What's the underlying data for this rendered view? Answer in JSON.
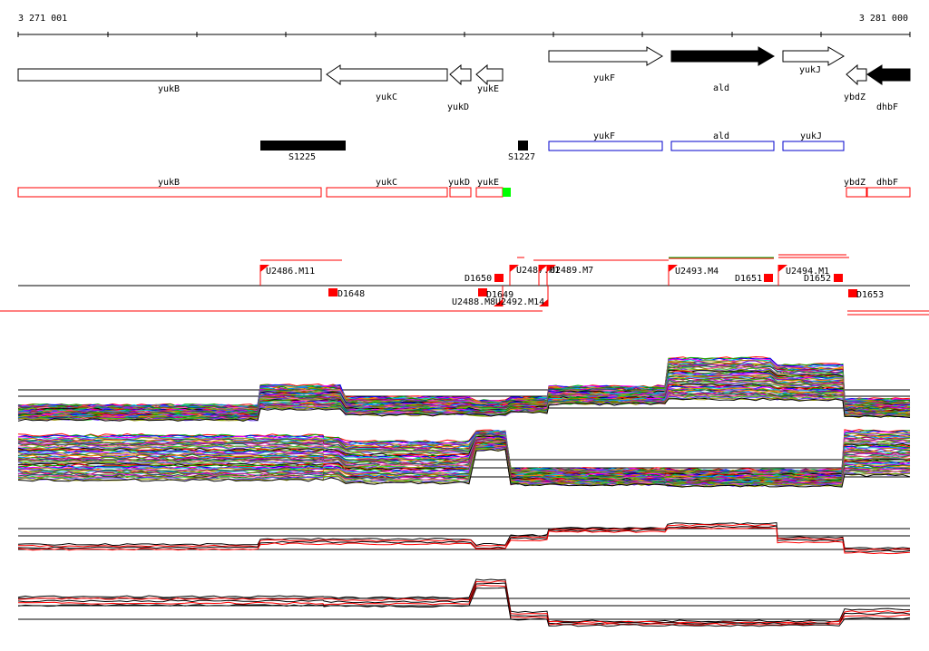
{
  "coordinates": {
    "start_label": "3 271 001",
    "end_label": "3 281 000"
  },
  "genes": [
    {
      "name": "yukB",
      "strand": "-",
      "fill": "#ffffff"
    },
    {
      "name": "yukC",
      "strand": "-",
      "fill": "#ffffff"
    },
    {
      "name": "yukD",
      "strand": "-",
      "fill": "#ffffff"
    },
    {
      "name": "yukE",
      "strand": "-",
      "fill": "#ffffff"
    },
    {
      "name": "yukF",
      "strand": "+",
      "fill": "#ffffff"
    },
    {
      "name": "ald",
      "strand": "+",
      "fill": "#000000"
    },
    {
      "name": "yukJ",
      "strand": "+",
      "fill": "#ffffff"
    },
    {
      "name": "ybdZ",
      "strand": "-",
      "fill": "#ffffff"
    },
    {
      "name": "dhbF",
      "strand": "-",
      "fill": "#000000"
    }
  ],
  "s_features": [
    {
      "name": "S1225"
    },
    {
      "name": "S1227"
    }
  ],
  "blue_boxes": [
    {
      "name": "yukF"
    },
    {
      "name": "ald"
    },
    {
      "name": "yukJ"
    }
  ],
  "red_boxes": [
    {
      "name": "yukB"
    },
    {
      "name": "yukC"
    },
    {
      "name": "yukD"
    },
    {
      "name": "yukE"
    },
    {
      "name": "ybdZ"
    },
    {
      "name": "dhbF"
    }
  ],
  "upper_flags": [
    {
      "name": "U2486.M11"
    },
    {
      "name": "D1650"
    },
    {
      "name": "U2487.M1"
    },
    {
      "name": "U2489.M7"
    },
    {
      "name": "U2493.M4"
    },
    {
      "name": "D1651"
    },
    {
      "name": "U2494.M1"
    },
    {
      "name": "D1652"
    }
  ],
  "lower_flags": [
    {
      "name": "D1648"
    },
    {
      "name": "D1649"
    },
    {
      "name": "U2488.M8"
    },
    {
      "name": "U2492.M14"
    },
    {
      "name": "D1653"
    }
  ],
  "colors": {
    "terminator": "#ff0000",
    "cds_outline": "#ff0000",
    "operon_outline": "#0000cc",
    "highlight": "#00ff00"
  }
}
